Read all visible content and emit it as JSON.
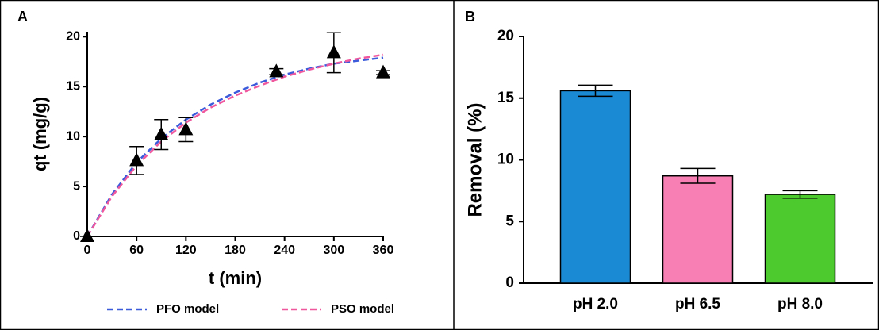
{
  "chart_data": [
    {
      "type": "scatter",
      "panel_label": "A",
      "xlabel": "t (min)",
      "ylabel": "qt (mg/g)",
      "xlim": [
        0,
        360
      ],
      "ylim": [
        0,
        20.5
      ],
      "xticks": [
        0,
        60,
        120,
        180,
        240,
        300,
        360
      ],
      "yticks": [
        0,
        5,
        10,
        15,
        20
      ],
      "points": {
        "x": [
          0,
          60,
          90,
          120,
          230,
          300,
          360
        ],
        "values": [
          0,
          7.6,
          10.2,
          10.7,
          16.5,
          18.4,
          16.4
        ],
        "errors": [
          0,
          1.4,
          1.5,
          1.2,
          0.3,
          2.0,
          0.2
        ],
        "color": "#000000"
      },
      "series": [
        {
          "name": "PFO model",
          "color": "#3b5bdb",
          "x": [
            0,
            30,
            60,
            90,
            120,
            150,
            180,
            210,
            240,
            270,
            300,
            330,
            360
          ],
          "values": [
            0,
            4.2,
            7.4,
            9.8,
            11.7,
            13.2,
            14.4,
            15.4,
            16.2,
            16.8,
            17.3,
            17.6,
            17.9
          ]
        },
        {
          "name": "PSO model",
          "color": "#f0589e",
          "x": [
            0,
            30,
            60,
            90,
            120,
            150,
            180,
            210,
            240,
            270,
            300,
            330,
            360
          ],
          "values": [
            0,
            4.0,
            7.1,
            9.5,
            11.4,
            12.9,
            14.1,
            15.1,
            16.0,
            16.7,
            17.3,
            17.8,
            18.2
          ]
        }
      ],
      "legend": "bottom"
    },
    {
      "type": "bar",
      "panel_label": "B",
      "ylabel": "Removal (%)",
      "categories": [
        "pH 2.0",
        "pH 6.5",
        "pH 8.0"
      ],
      "values": [
        15.6,
        8.7,
        7.2
      ],
      "errors": [
        0.45,
        0.6,
        0.3
      ],
      "colors": [
        "#1a8ad4",
        "#f77fb4",
        "#4cca2e"
      ],
      "ylim": [
        0,
        20
      ],
      "yticks": [
        0,
        5,
        10,
        15,
        20
      ]
    }
  ]
}
